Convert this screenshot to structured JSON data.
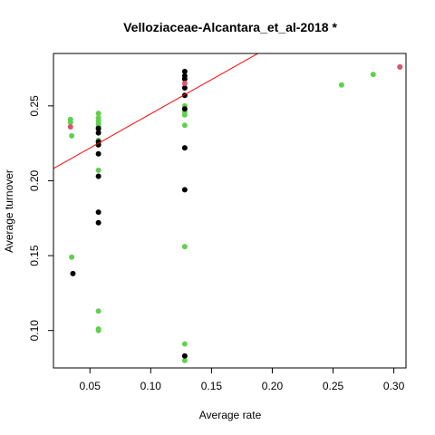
{
  "chart_data": {
    "type": "scatter",
    "title": "Velloziaceae-Alcantara_et_al-2018 *",
    "xlabel": "Average rate",
    "ylabel": "Average turnover",
    "xlim": [
      0.02,
      0.31
    ],
    "ylim": [
      0.075,
      0.285
    ],
    "x_ticks": [
      0.05,
      0.1,
      0.15,
      0.2,
      0.25,
      0.3
    ],
    "x_tick_labels": [
      "0.05",
      "0.10",
      "0.15",
      "0.20",
      "0.25",
      "0.30"
    ],
    "y_ticks": [
      0.1,
      0.15,
      0.2,
      0.25
    ],
    "y_tick_labels": [
      "0.10",
      "0.15",
      "0.20",
      "0.25"
    ],
    "grid": false,
    "colors": {
      "green": "#61D04F",
      "black": "#000000",
      "red": "#DF536B",
      "line": "#FF0000"
    },
    "series": [
      {
        "color": "green",
        "x": [
          0.034,
          0.034,
          0.035,
          0.035,
          0.057,
          0.057,
          0.057,
          0.057,
          0.057,
          0.057,
          0.057,
          0.057,
          0.057,
          0.057,
          0.057,
          0.057,
          0.128,
          0.128,
          0.128,
          0.128,
          0.128,
          0.128,
          0.128,
          0.257,
          0.283,
          0.305
        ],
        "y": [
          0.241,
          0.239,
          0.23,
          0.149,
          0.245,
          0.242,
          0.24,
          0.238,
          0.236,
          0.234,
          0.227,
          0.224,
          0.207,
          0.113,
          0.101,
          0.1,
          0.25,
          0.246,
          0.244,
          0.237,
          0.156,
          0.091,
          0.08,
          0.264,
          0.271,
          0.276
        ]
      },
      {
        "color": "black",
        "x": [
          0.036,
          0.057,
          0.057,
          0.057,
          0.057,
          0.057,
          0.057,
          0.057,
          0.057,
          0.128,
          0.128,
          0.128,
          0.128,
          0.128,
          0.128,
          0.128,
          0.128,
          0.128
        ],
        "y": [
          0.138,
          0.235,
          0.232,
          0.226,
          0.224,
          0.218,
          0.203,
          0.179,
          0.172,
          0.273,
          0.27,
          0.268,
          0.262,
          0.257,
          0.248,
          0.222,
          0.194,
          0.083
        ]
      },
      {
        "color": "red",
        "x": [
          0.034,
          0.128,
          0.305
        ],
        "y": [
          0.236,
          0.265,
          0.276
        ]
      }
    ],
    "fit_line": {
      "color": "line",
      "intercept": 0.199,
      "slope": 0.457
    }
  }
}
